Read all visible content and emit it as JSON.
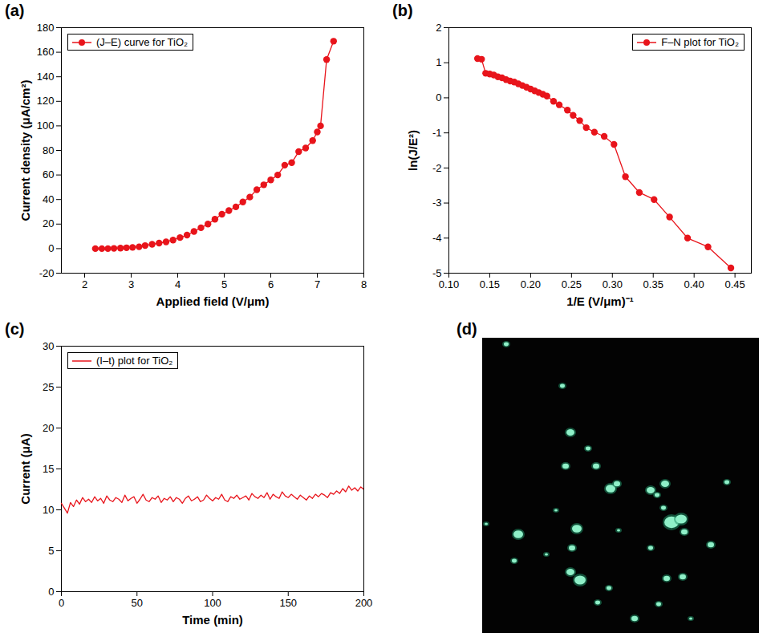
{
  "chart_data": [
    {
      "type": "line",
      "panel": "(a)",
      "x_label": "Applied field (V/μm)",
      "y_label": "Current density (μA/cm²)",
      "xlim": [
        1.5,
        8
      ],
      "xticks": [
        2,
        3,
        4,
        5,
        6,
        7,
        8
      ],
      "ylim": [
        -20,
        180
      ],
      "yticks": [
        -20,
        0,
        20,
        40,
        60,
        80,
        100,
        120,
        140,
        160,
        180
      ],
      "grid": false,
      "legend": "top-left",
      "x": [
        2.23,
        2.37,
        2.5,
        2.63,
        2.77,
        2.9,
        3.03,
        3.17,
        3.3,
        3.45,
        3.6,
        3.75,
        3.9,
        4.05,
        4.2,
        4.35,
        4.5,
        4.65,
        4.8,
        4.95,
        5.1,
        5.25,
        5.4,
        5.55,
        5.7,
        5.85,
        6.0,
        6.15,
        6.3,
        6.45,
        6.6,
        6.75,
        6.9,
        7.0,
        7.07,
        7.2,
        7.35
      ],
      "series": [
        {
          "name": "(J–E) curve for TiO₂",
          "color": "#e8141b",
          "marker": "circle",
          "line_style": "solid",
          "values": [
            0,
            0,
            0,
            0.2,
            0.4,
            0.7,
            1,
            1.5,
            2.5,
            3.5,
            4.5,
            5.5,
            7,
            9,
            11,
            14,
            17,
            20,
            24,
            28,
            31,
            34,
            38,
            42,
            48,
            52,
            56,
            60,
            68,
            70,
            79,
            82,
            88,
            95,
            100,
            154,
            169
          ]
        }
      ]
    },
    {
      "type": "line",
      "panel": "(b)",
      "x_label": "1/E (V/μm)⁻¹",
      "y_label": "ln(J/E²)",
      "xlim": [
        0.1,
        0.47
      ],
      "xticks": [
        {
          "value": 0.1,
          "label": "0.10"
        },
        {
          "value": 0.15,
          "label": "0.15"
        },
        {
          "value": 0.2,
          "label": "0.20"
        },
        {
          "value": 0.25,
          "label": "0.25"
        },
        {
          "value": 0.3,
          "label": "0.30"
        },
        {
          "value": 0.35,
          "label": "0.35"
        },
        {
          "value": 0.4,
          "label": "0.40"
        },
        {
          "value": 0.45,
          "label": "0.45"
        }
      ],
      "ylim": [
        -5,
        2
      ],
      "yticks": [
        -5,
        -4,
        -3,
        -2,
        -1,
        0,
        1,
        2
      ],
      "grid": false,
      "legend": "top-right",
      "x": [
        0.135,
        0.14,
        0.145,
        0.15,
        0.155,
        0.16,
        0.165,
        0.17,
        0.175,
        0.18,
        0.185,
        0.19,
        0.195,
        0.2,
        0.205,
        0.21,
        0.215,
        0.22,
        0.228,
        0.235,
        0.245,
        0.252,
        0.26,
        0.268,
        0.278,
        0.29,
        0.302,
        0.316,
        0.333,
        0.351,
        0.37,
        0.392,
        0.417,
        0.445
      ],
      "series": [
        {
          "name": "F–N plot for TiO₂",
          "color": "#e8141b",
          "marker": "circle",
          "line_style": "solid",
          "values": [
            1.12,
            1.1,
            0.7,
            0.68,
            0.65,
            0.6,
            0.57,
            0.52,
            0.48,
            0.45,
            0.4,
            0.35,
            0.3,
            0.25,
            0.2,
            0.15,
            0.1,
            0.05,
            -0.1,
            -0.2,
            -0.35,
            -0.5,
            -0.65,
            -0.85,
            -0.98,
            -1.1,
            -1.33,
            -2.25,
            -2.7,
            -2.9,
            -3.4,
            -4.0,
            -4.25,
            -4.85
          ]
        }
      ]
    },
    {
      "type": "line",
      "panel": "(c)",
      "x_label": "Time (min)",
      "y_label": "Current (μA)",
      "xlim": [
        0,
        200
      ],
      "xticks": [
        0,
        50,
        100,
        150,
        200
      ],
      "ylim": [
        0,
        30
      ],
      "yticks": [
        0,
        5,
        10,
        15,
        20,
        25,
        30
      ],
      "grid": false,
      "legend": "top-left",
      "x": [
        0,
        2,
        4,
        6,
        8,
        10,
        12,
        14,
        16,
        18,
        20,
        22,
        24,
        26,
        28,
        30,
        32,
        34,
        36,
        38,
        40,
        42,
        44,
        46,
        48,
        50,
        52,
        54,
        56,
        58,
        60,
        62,
        64,
        66,
        68,
        70,
        72,
        74,
        76,
        78,
        80,
        82,
        84,
        86,
        88,
        90,
        92,
        94,
        96,
        98,
        100,
        102,
        104,
        106,
        108,
        110,
        112,
        114,
        116,
        118,
        120,
        122,
        124,
        126,
        128,
        130,
        132,
        134,
        136,
        138,
        140,
        142,
        144,
        146,
        148,
        150,
        152,
        154,
        156,
        158,
        160,
        162,
        164,
        166,
        168,
        170,
        172,
        174,
        176,
        178,
        180,
        182,
        184,
        186,
        188,
        190,
        192,
        194,
        196,
        198,
        200
      ],
      "series": [
        {
          "name": "(I–t) plot for TiO₂",
          "color": "#e8141b",
          "marker": "none",
          "line_style": "solid",
          "values": [
            10.8,
            10.2,
            9.6,
            10.9,
            10.4,
            11.2,
            10.7,
            11.5,
            11.0,
            11.3,
            10.9,
            11.6,
            11.1,
            11.4,
            10.8,
            11.7,
            11.2,
            11.0,
            11.5,
            11.3,
            10.9,
            11.8,
            11.1,
            11.4,
            11.6,
            10.8,
            11.3,
            11.9,
            11.2,
            11.0,
            11.5,
            11.3,
            11.7,
            10.9,
            11.4,
            11.2,
            11.6,
            11.0,
            11.5,
            11.3,
            10.8,
            11.4,
            11.7,
            11.1,
            11.3,
            11.6,
            11.0,
            11.2,
            11.8,
            11.4,
            11.1,
            11.5,
            11.3,
            11.9,
            11.2,
            11.0,
            11.6,
            11.4,
            11.8,
            11.3,
            11.5,
            11.7,
            11.2,
            12.0,
            11.6,
            11.4,
            11.8,
            11.5,
            12.1,
            11.3,
            11.9,
            11.6,
            11.4,
            12.2,
            11.7,
            11.5,
            11.9,
            11.6,
            11.3,
            11.8,
            11.5,
            11.2,
            11.7,
            11.4,
            11.9,
            11.6,
            12.0,
            11.8,
            11.5,
            12.1,
            11.9,
            12.3,
            12.0,
            12.6,
            12.2,
            12.9,
            12.4,
            12.7,
            12.3,
            12.8,
            12.5
          ]
        }
      ]
    },
    {
      "type": "image",
      "panel": "(d)"
    }
  ]
}
